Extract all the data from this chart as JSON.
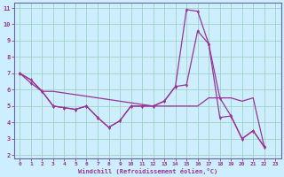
{
  "xlabel": "Windchill (Refroidissement éolien,°C)",
  "background_color": "#cceeff",
  "grid_color": "#99ccbb",
  "line_color": "#993399",
  "spine_color": "#666699",
  "xlim": [
    -0.5,
    23.5
  ],
  "ylim": [
    1.8,
    11.3
  ],
  "xticks": [
    0,
    1,
    2,
    3,
    4,
    5,
    6,
    7,
    8,
    9,
    10,
    11,
    12,
    13,
    14,
    15,
    16,
    17,
    18,
    19,
    20,
    21,
    22,
    23
  ],
  "yticks": [
    2,
    3,
    4,
    5,
    6,
    7,
    8,
    9,
    10,
    11
  ],
  "series": [
    {
      "x": [
        0,
        1,
        2,
        3,
        4,
        5,
        6,
        7,
        8,
        9,
        10,
        11,
        12,
        13,
        14,
        15,
        16,
        17,
        18,
        19,
        20,
        21,
        22
      ],
      "y": [
        7.0,
        6.6,
        5.9,
        5.9,
        5.8,
        5.7,
        5.6,
        5.5,
        5.4,
        5.3,
        5.2,
        5.1,
        5.0,
        5.0,
        5.0,
        5.0,
        5.0,
        5.5,
        5.5,
        5.5,
        5.3,
        5.5,
        2.5
      ],
      "marker": false,
      "lw": 0.9
    },
    {
      "x": [
        0,
        1,
        2,
        3,
        4,
        5,
        6,
        7,
        8,
        9,
        10,
        11,
        12,
        13,
        14,
        15,
        16,
        17,
        18,
        19,
        20,
        21,
        22
      ],
      "y": [
        7.0,
        6.4,
        5.9,
        5.0,
        4.9,
        4.8,
        5.0,
        4.3,
        3.7,
        4.1,
        5.0,
        5.0,
        5.0,
        5.3,
        6.2,
        6.3,
        9.6,
        8.8,
        4.3,
        4.4,
        3.0,
        3.5,
        2.5
      ],
      "marker": true,
      "lw": 0.9
    },
    {
      "x": [
        0,
        1,
        2,
        3,
        4,
        5,
        6,
        7,
        8,
        9,
        10,
        11,
        12,
        13,
        14,
        15,
        16,
        17,
        18,
        19,
        20,
        21,
        22
      ],
      "y": [
        7.0,
        6.6,
        5.9,
        5.0,
        4.9,
        4.8,
        5.0,
        4.3,
        3.7,
        4.1,
        5.0,
        5.0,
        5.0,
        5.3,
        6.2,
        10.9,
        10.8,
        8.8,
        5.5,
        4.4,
        3.0,
        3.5,
        2.5
      ],
      "marker": true,
      "lw": 0.9
    }
  ]
}
